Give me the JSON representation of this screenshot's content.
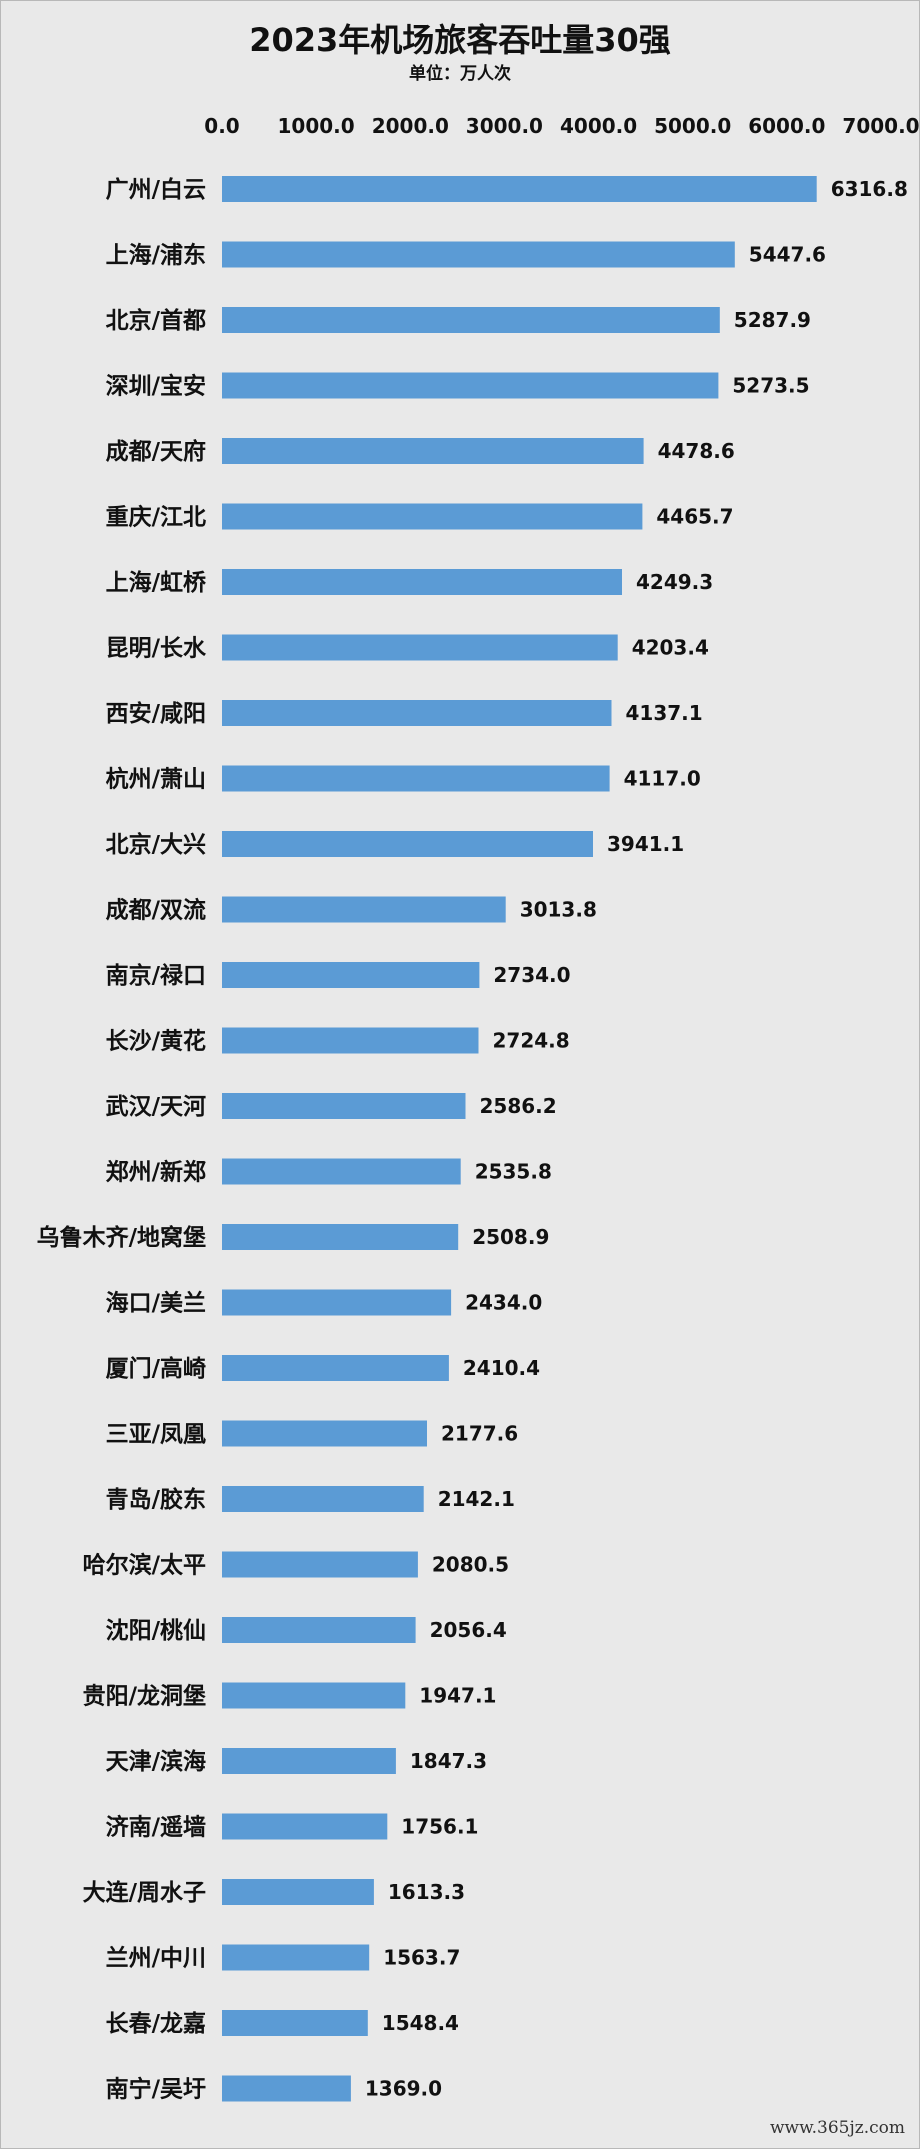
{
  "chart_data": {
    "type": "bar",
    "orientation": "horizontal",
    "title": "2023年机场旅客吞吐量30强",
    "subtitle": "单位：万人次",
    "xlim": [
      0,
      7000
    ],
    "x_ticks": [
      "0.0",
      "1000.0",
      "2000.0",
      "3000.0",
      "4000.0",
      "5000.0",
      "6000.0",
      "7000.0"
    ],
    "tick_values": [
      0,
      1000,
      2000,
      3000,
      4000,
      5000,
      6000,
      7000
    ],
    "categories": [
      "广州/白云",
      "上海/浦东",
      "北京/首都",
      "深圳/宝安",
      "成都/天府",
      "重庆/江北",
      "上海/虹桥",
      "昆明/长水",
      "西安/咸阳",
      "杭州/萧山",
      "北京/大兴",
      "成都/双流",
      "南京/禄口",
      "长沙/黄花",
      "武汉/天河",
      "郑州/新郑",
      "乌鲁木齐/地窝堡",
      "海口/美兰",
      "厦门/高崎",
      "三亚/凤凰",
      "青岛/胶东",
      "哈尔滨/太平",
      "沈阳/桃仙",
      "贵阳/龙洞堡",
      "天津/滨海",
      "济南/遥墙",
      "大连/周水子",
      "兰州/中川",
      "长春/龙嘉",
      "南宁/吴圩"
    ],
    "values": [
      6316.8,
      5447.6,
      5287.9,
      5273.5,
      4478.6,
      4465.7,
      4249.3,
      4203.4,
      4137.1,
      4117.0,
      3941.1,
      3013.8,
      2734.0,
      2724.8,
      2586.2,
      2535.8,
      2508.9,
      2434.0,
      2410.4,
      2177.6,
      2142.1,
      2080.5,
      2056.4,
      1947.1,
      1847.3,
      1756.1,
      1613.3,
      1563.7,
      1548.4,
      1369.0
    ],
    "value_labels": [
      "6316.8",
      "5447.6",
      "5287.9",
      "5273.5",
      "4478.6",
      "4465.7",
      "4249.3",
      "4203.4",
      "4137.1",
      "4117.0",
      "3941.1",
      "3013.8",
      "2734.0",
      "2724.8",
      "2586.2",
      "2535.8",
      "2508.9",
      "2434.0",
      "2410.4",
      "2177.6",
      "2142.1",
      "2080.5",
      "2056.4",
      "1947.1",
      "1847.3",
      "1756.1",
      "1613.3",
      "1563.7",
      "1548.4",
      "1369.0"
    ],
    "bar_color": "#5b9bd5",
    "background_color": "#e9e9e9",
    "grid": false,
    "legend": "none",
    "axis_position": "top"
  },
  "watermark": "www.365jz.com"
}
